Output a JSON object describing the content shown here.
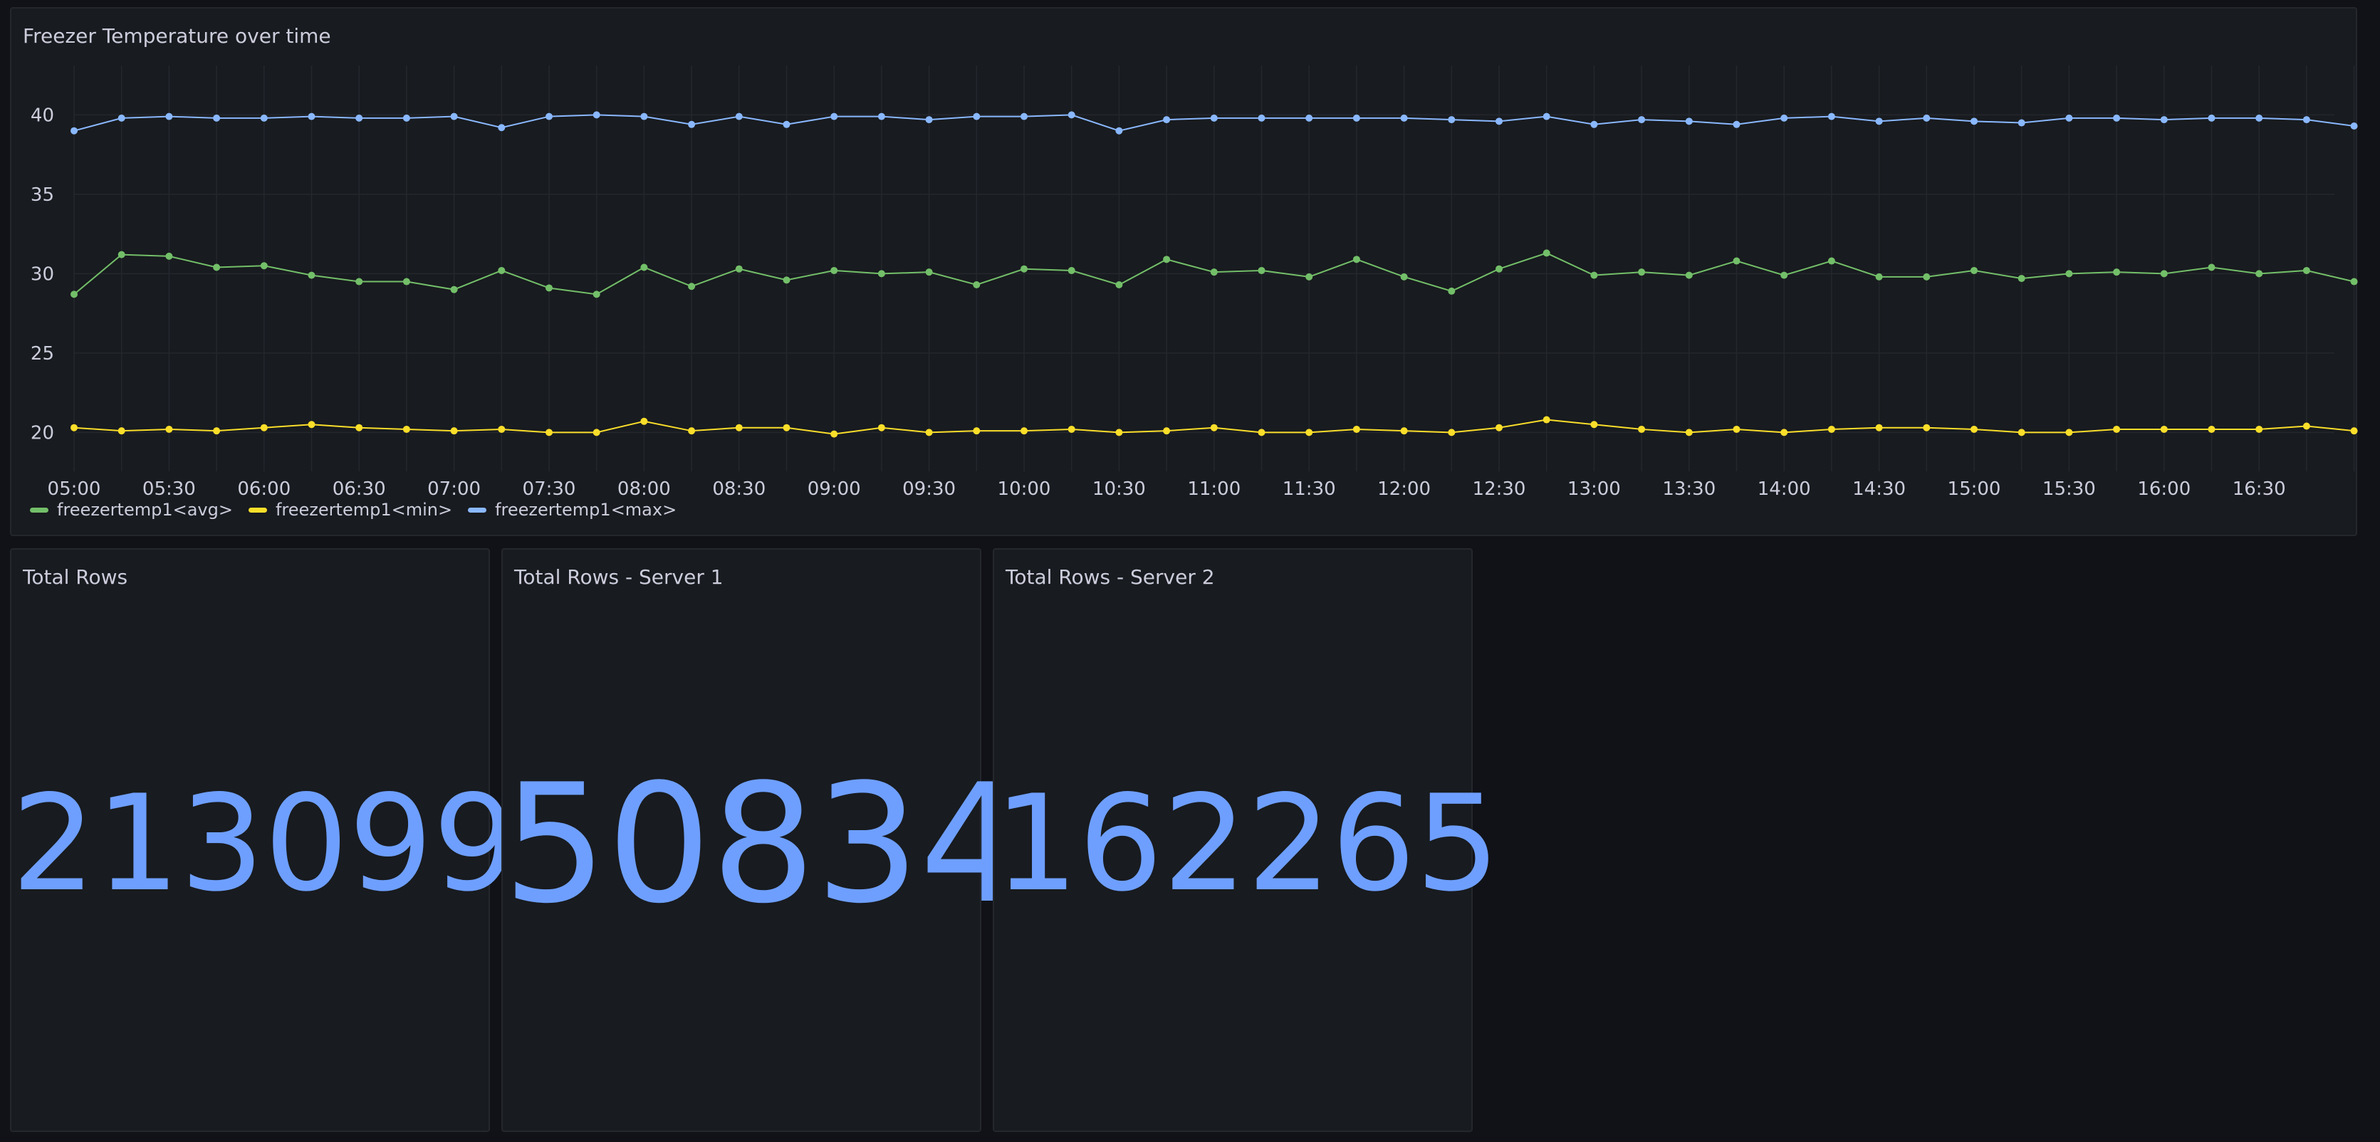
{
  "timeseries_panel": {
    "title": "Freezer Temperature over time",
    "legend": [
      {
        "label": "freezertemp1<avg>",
        "color": "#73bf69"
      },
      {
        "label": "freezertemp1<min>",
        "color": "#fade2a"
      },
      {
        "label": "freezertemp1<max>",
        "color": "#8ab8ff"
      }
    ]
  },
  "chart_data": {
    "type": "line",
    "x_tick_labels": [
      "05:00",
      "05:30",
      "06:00",
      "06:30",
      "07:00",
      "07:30",
      "08:00",
      "08:30",
      "09:00",
      "09:30",
      "10:00",
      "10:30",
      "11:00",
      "11:30",
      "12:00",
      "12:30",
      "13:00",
      "13:30",
      "14:00",
      "14:30",
      "15:00",
      "15:30",
      "16:00",
      "16:30"
    ],
    "y_ticks": [
      20,
      25,
      30,
      35,
      40
    ],
    "ylim": [
      18,
      42
    ],
    "x_start": "05:00",
    "x_step_minutes": 15,
    "grid": true,
    "legend_position": "bottom-left",
    "series": [
      {
        "name": "freezertemp1<avg>",
        "color": "#73bf69",
        "values": [
          28.7,
          31.2,
          31.1,
          30.4,
          30.5,
          29.9,
          29.5,
          29.5,
          29.0,
          30.2,
          29.1,
          28.7,
          30.4,
          29.2,
          30.3,
          29.6,
          30.2,
          30.0,
          30.1,
          29.3,
          30.3,
          30.2,
          29.3,
          30.9,
          30.1,
          30.2,
          29.8,
          30.9,
          29.8,
          28.9,
          30.3,
          31.3,
          29.9,
          30.1,
          29.9,
          30.8,
          29.9,
          30.8,
          29.8,
          29.8,
          30.2,
          29.7,
          30.0,
          30.1,
          30.0,
          30.4,
          30.0,
          30.2,
          29.5
        ]
      },
      {
        "name": "freezertemp1<min>",
        "color": "#fade2a",
        "values": [
          20.3,
          20.1,
          20.2,
          20.1,
          20.3,
          20.5,
          20.3,
          20.2,
          20.1,
          20.2,
          20.0,
          20.0,
          20.7,
          20.1,
          20.3,
          20.3,
          19.9,
          20.3,
          20.0,
          20.1,
          20.1,
          20.2,
          20.0,
          20.1,
          20.3,
          20.0,
          20.0,
          20.2,
          20.1,
          20.0,
          20.3,
          20.8,
          20.5,
          20.2,
          20.0,
          20.2,
          20.0,
          20.2,
          20.3,
          20.3,
          20.2,
          20.0,
          20.0,
          20.2,
          20.2,
          20.2,
          20.2,
          20.4,
          20.1
        ]
      },
      {
        "name": "freezertemp1<max>",
        "color": "#8ab8ff",
        "values": [
          39.0,
          39.8,
          39.9,
          39.8,
          39.8,
          39.9,
          39.8,
          39.8,
          39.9,
          39.2,
          39.9,
          40.0,
          39.9,
          39.4,
          39.9,
          39.4,
          39.9,
          39.9,
          39.7,
          39.9,
          39.9,
          40.0,
          39.0,
          39.7,
          39.8,
          39.8,
          39.8,
          39.8,
          39.8,
          39.7,
          39.6,
          39.9,
          39.4,
          39.7,
          39.6,
          39.4,
          39.8,
          39.9,
          39.6,
          39.8,
          39.6,
          39.5,
          39.8,
          39.8,
          39.7,
          39.8,
          39.8,
          39.7,
          39.3
        ]
      }
    ]
  },
  "stats": [
    {
      "title": "Total Rows",
      "value": "213099"
    },
    {
      "title": "Total Rows - Server 1",
      "value": "50834"
    },
    {
      "title": "Total Rows - Server 2",
      "value": "162265"
    }
  ]
}
